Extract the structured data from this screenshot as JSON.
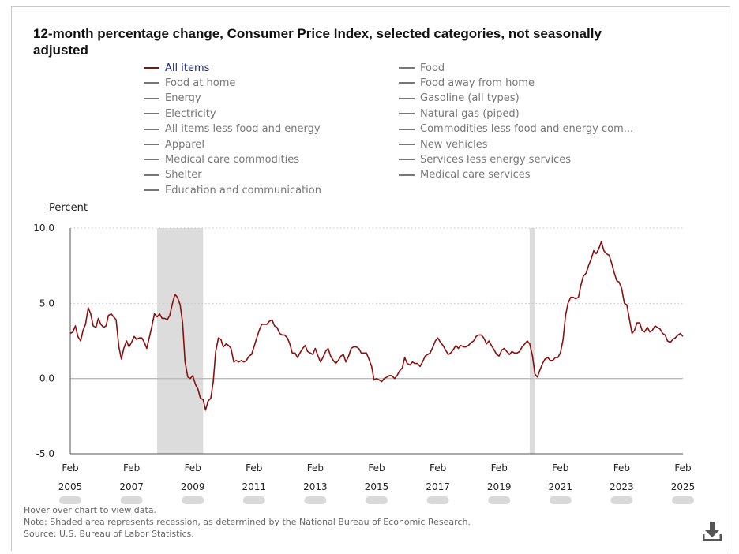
{
  "title": "12-month percentage change, Consumer Price Index, selected categories, not seasonally adjusted",
  "legend": {
    "left": [
      "All items",
      "Food at home",
      "Energy",
      "Electricity",
      "All items less food and energy",
      "Apparel",
      "Medical care commodities",
      "Shelter",
      "Education and communication"
    ],
    "right": [
      "Food",
      "Food away from home",
      "Gasoline (all types)",
      "Natural gas (piped)",
      "Commodities less food and energy com...",
      "New vehicles",
      "Services less energy services",
      "Medical care services"
    ]
  },
  "ylabel": "Percent",
  "notes": {
    "hover": "Hover over chart to view data.",
    "note": "Note: Shaded area represents recession, as determined by the National Bureau of Economic Research.",
    "source": "Source: U.S. Bureau of Labor Statistics."
  },
  "colors": {
    "series": "#8b0f0f",
    "recession": "#dcdcdc",
    "active_legend_text": "#1e2b7a",
    "inactive": "#777777"
  },
  "chart_data": {
    "type": "line",
    "ylabel": "Percent",
    "ylim": [
      -5.0,
      10.0
    ],
    "yticks": [
      "10.0",
      "5.0",
      "0.0",
      "-5.0"
    ],
    "xlim": [
      2005.083,
      2025.083
    ],
    "xticks": [
      {
        "month": "Feb",
        "year": "2005",
        "x": 2005.083
      },
      {
        "month": "Feb",
        "year": "2007",
        "x": 2007.083
      },
      {
        "month": "Feb",
        "year": "2009",
        "x": 2009.083
      },
      {
        "month": "Feb",
        "year": "2011",
        "x": 2011.083
      },
      {
        "month": "Feb",
        "year": "2013",
        "x": 2013.083
      },
      {
        "month": "Feb",
        "year": "2015",
        "x": 2015.083
      },
      {
        "month": "Feb",
        "year": "2017",
        "x": 2017.083
      },
      {
        "month": "Feb",
        "year": "2019",
        "x": 2019.083
      },
      {
        "month": "Feb",
        "year": "2021",
        "x": 2021.083
      },
      {
        "month": "Feb",
        "year": "2023",
        "x": 2023.083
      },
      {
        "month": "Feb",
        "year": "2025",
        "x": 2025.083
      }
    ],
    "grid": true,
    "recessions": [
      [
        2007.92,
        2009.42
      ],
      [
        2020.08,
        2020.25
      ]
    ],
    "series": [
      {
        "name": "All items",
        "points": [
          [
            2005.08,
            3.0
          ],
          [
            2005.17,
            3.1
          ],
          [
            2005.25,
            3.5
          ],
          [
            2005.33,
            2.8
          ],
          [
            2005.42,
            2.5
          ],
          [
            2005.5,
            3.2
          ],
          [
            2005.58,
            3.6
          ],
          [
            2005.67,
            4.7
          ],
          [
            2005.75,
            4.3
          ],
          [
            2005.83,
            3.5
          ],
          [
            2005.92,
            3.4
          ],
          [
            2006.0,
            4.0
          ],
          [
            2006.08,
            3.6
          ],
          [
            2006.17,
            3.4
          ],
          [
            2006.25,
            3.5
          ],
          [
            2006.33,
            4.2
          ],
          [
            2006.42,
            4.3
          ],
          [
            2006.5,
            4.1
          ],
          [
            2006.58,
            3.9
          ],
          [
            2006.67,
            2.1
          ],
          [
            2006.75,
            1.3
          ],
          [
            2006.83,
            2.0
          ],
          [
            2006.92,
            2.5
          ],
          [
            2007.0,
            2.1
          ],
          [
            2007.08,
            2.4
          ],
          [
            2007.17,
            2.8
          ],
          [
            2007.25,
            2.6
          ],
          [
            2007.33,
            2.7
          ],
          [
            2007.42,
            2.7
          ],
          [
            2007.5,
            2.4
          ],
          [
            2007.58,
            2.0
          ],
          [
            2007.67,
            2.8
          ],
          [
            2007.75,
            3.5
          ],
          [
            2007.83,
            4.3
          ],
          [
            2007.92,
            4.1
          ],
          [
            2008.0,
            4.3
          ],
          [
            2008.08,
            4.0
          ],
          [
            2008.17,
            4.0
          ],
          [
            2008.25,
            3.9
          ],
          [
            2008.33,
            4.2
          ],
          [
            2008.42,
            5.0
          ],
          [
            2008.5,
            5.6
          ],
          [
            2008.58,
            5.4
          ],
          [
            2008.67,
            4.9
          ],
          [
            2008.75,
            3.7
          ],
          [
            2008.83,
            1.1
          ],
          [
            2008.92,
            0.1
          ],
          [
            2009.0,
            0.0
          ],
          [
            2009.08,
            0.2
          ],
          [
            2009.17,
            -0.4
          ],
          [
            2009.25,
            -0.7
          ],
          [
            2009.33,
            -1.3
          ],
          [
            2009.42,
            -1.4
          ],
          [
            2009.5,
            -2.1
          ],
          [
            2009.58,
            -1.5
          ],
          [
            2009.67,
            -1.3
          ],
          [
            2009.75,
            -0.2
          ],
          [
            2009.83,
            1.8
          ],
          [
            2009.92,
            2.7
          ],
          [
            2010.0,
            2.6
          ],
          [
            2010.08,
            2.1
          ],
          [
            2010.17,
            2.3
          ],
          [
            2010.25,
            2.2
          ],
          [
            2010.33,
            2.0
          ],
          [
            2010.42,
            1.1
          ],
          [
            2010.5,
            1.2
          ],
          [
            2010.58,
            1.1
          ],
          [
            2010.67,
            1.2
          ],
          [
            2010.75,
            1.1
          ],
          [
            2010.83,
            1.2
          ],
          [
            2010.92,
            1.5
          ],
          [
            2011.0,
            1.6
          ],
          [
            2011.08,
            2.1
          ],
          [
            2011.17,
            2.7
          ],
          [
            2011.25,
            3.2
          ],
          [
            2011.33,
            3.6
          ],
          [
            2011.42,
            3.6
          ],
          [
            2011.5,
            3.6
          ],
          [
            2011.58,
            3.8
          ],
          [
            2011.67,
            3.9
          ],
          [
            2011.75,
            3.5
          ],
          [
            2011.83,
            3.4
          ],
          [
            2011.92,
            3.0
          ],
          [
            2012.0,
            2.9
          ],
          [
            2012.08,
            2.9
          ],
          [
            2012.17,
            2.7
          ],
          [
            2012.25,
            2.3
          ],
          [
            2012.33,
            1.7
          ],
          [
            2012.42,
            1.7
          ],
          [
            2012.5,
            1.4
          ],
          [
            2012.58,
            1.7
          ],
          [
            2012.67,
            2.0
          ],
          [
            2012.75,
            2.2
          ],
          [
            2012.83,
            1.8
          ],
          [
            2012.92,
            1.7
          ],
          [
            2013.0,
            1.6
          ],
          [
            2013.08,
            2.0
          ],
          [
            2013.17,
            1.5
          ],
          [
            2013.25,
            1.1
          ],
          [
            2013.33,
            1.4
          ],
          [
            2013.42,
            1.8
          ],
          [
            2013.5,
            2.0
          ],
          [
            2013.58,
            1.5
          ],
          [
            2013.67,
            1.2
          ],
          [
            2013.75,
            1.0
          ],
          [
            2013.83,
            1.2
          ],
          [
            2013.92,
            1.5
          ],
          [
            2014.0,
            1.6
          ],
          [
            2014.08,
            1.1
          ],
          [
            2014.17,
            1.5
          ],
          [
            2014.25,
            2.0
          ],
          [
            2014.33,
            2.1
          ],
          [
            2014.42,
            2.1
          ],
          [
            2014.5,
            2.0
          ],
          [
            2014.58,
            1.7
          ],
          [
            2014.67,
            1.7
          ],
          [
            2014.75,
            1.7
          ],
          [
            2014.83,
            1.3
          ],
          [
            2014.92,
            0.8
          ],
          [
            2015.0,
            -0.1
          ],
          [
            2015.08,
            0.0
          ],
          [
            2015.17,
            -0.1
          ],
          [
            2015.25,
            -0.2
          ],
          [
            2015.33,
            0.0
          ],
          [
            2015.42,
            0.1
          ],
          [
            2015.5,
            0.2
          ],
          [
            2015.58,
            0.2
          ],
          [
            2015.67,
            0.0
          ],
          [
            2015.75,
            0.2
          ],
          [
            2015.83,
            0.5
          ],
          [
            2015.92,
            0.7
          ],
          [
            2016.0,
            1.4
          ],
          [
            2016.08,
            1.0
          ],
          [
            2016.17,
            0.9
          ],
          [
            2016.25,
            1.1
          ],
          [
            2016.33,
            1.0
          ],
          [
            2016.42,
            1.0
          ],
          [
            2016.5,
            0.8
          ],
          [
            2016.58,
            1.1
          ],
          [
            2016.67,
            1.5
          ],
          [
            2016.75,
            1.6
          ],
          [
            2016.83,
            1.7
          ],
          [
            2016.92,
            2.1
          ],
          [
            2017.0,
            2.5
          ],
          [
            2017.08,
            2.7
          ],
          [
            2017.17,
            2.4
          ],
          [
            2017.25,
            2.2
          ],
          [
            2017.33,
            1.9
          ],
          [
            2017.42,
            1.6
          ],
          [
            2017.5,
            1.7
          ],
          [
            2017.58,
            1.9
          ],
          [
            2017.67,
            2.2
          ],
          [
            2017.75,
            2.0
          ],
          [
            2017.83,
            2.2
          ],
          [
            2017.92,
            2.1
          ],
          [
            2018.0,
            2.1
          ],
          [
            2018.08,
            2.2
          ],
          [
            2018.17,
            2.4
          ],
          [
            2018.25,
            2.5
          ],
          [
            2018.33,
            2.8
          ],
          [
            2018.42,
            2.9
          ],
          [
            2018.5,
            2.9
          ],
          [
            2018.58,
            2.7
          ],
          [
            2018.67,
            2.3
          ],
          [
            2018.75,
            2.5
          ],
          [
            2018.83,
            2.2
          ],
          [
            2018.92,
            1.9
          ],
          [
            2019.0,
            1.6
          ],
          [
            2019.08,
            1.5
          ],
          [
            2019.17,
            1.9
          ],
          [
            2019.25,
            2.0
          ],
          [
            2019.33,
            1.8
          ],
          [
            2019.42,
            1.6
          ],
          [
            2019.5,
            1.8
          ],
          [
            2019.58,
            1.7
          ],
          [
            2019.67,
            1.7
          ],
          [
            2019.75,
            1.8
          ],
          [
            2019.83,
            2.1
          ],
          [
            2019.92,
            2.3
          ],
          [
            2020.0,
            2.5
          ],
          [
            2020.08,
            2.3
          ],
          [
            2020.17,
            1.5
          ],
          [
            2020.25,
            0.3
          ],
          [
            2020.33,
            0.1
          ],
          [
            2020.42,
            0.6
          ],
          [
            2020.5,
            1.0
          ],
          [
            2020.58,
            1.3
          ],
          [
            2020.67,
            1.4
          ],
          [
            2020.75,
            1.2
          ],
          [
            2020.83,
            1.2
          ],
          [
            2020.92,
            1.4
          ],
          [
            2021.0,
            1.4
          ],
          [
            2021.08,
            1.7
          ],
          [
            2021.17,
            2.6
          ],
          [
            2021.25,
            4.2
          ],
          [
            2021.33,
            5.0
          ],
          [
            2021.42,
            5.4
          ],
          [
            2021.5,
            5.4
          ],
          [
            2021.58,
            5.3
          ],
          [
            2021.67,
            5.4
          ],
          [
            2021.75,
            6.2
          ],
          [
            2021.83,
            6.8
          ],
          [
            2021.92,
            7.0
          ],
          [
            2022.0,
            7.5
          ],
          [
            2022.08,
            7.9
          ],
          [
            2022.17,
            8.5
          ],
          [
            2022.25,
            8.3
          ],
          [
            2022.33,
            8.6
          ],
          [
            2022.42,
            9.1
          ],
          [
            2022.5,
            8.5
          ],
          [
            2022.58,
            8.3
          ],
          [
            2022.67,
            8.2
          ],
          [
            2022.75,
            7.7
          ],
          [
            2022.83,
            7.1
          ],
          [
            2022.92,
            6.5
          ],
          [
            2023.0,
            6.4
          ],
          [
            2023.08,
            6.0
          ],
          [
            2023.17,
            5.0
          ],
          [
            2023.25,
            4.9
          ],
          [
            2023.33,
            4.0
          ],
          [
            2023.42,
            3.0
          ],
          [
            2023.5,
            3.2
          ],
          [
            2023.58,
            3.7
          ],
          [
            2023.67,
            3.7
          ],
          [
            2023.75,
            3.2
          ],
          [
            2023.83,
            3.1
          ],
          [
            2023.92,
            3.4
          ],
          [
            2024.0,
            3.1
          ],
          [
            2024.08,
            3.2
          ],
          [
            2024.17,
            3.5
          ],
          [
            2024.25,
            3.4
          ],
          [
            2024.33,
            3.3
          ],
          [
            2024.42,
            3.0
          ],
          [
            2024.5,
            2.9
          ],
          [
            2024.58,
            2.5
          ],
          [
            2024.67,
            2.4
          ],
          [
            2024.75,
            2.6
          ],
          [
            2024.83,
            2.7
          ],
          [
            2024.92,
            2.9
          ],
          [
            2025.0,
            3.0
          ],
          [
            2025.08,
            2.8
          ]
        ]
      }
    ]
  }
}
